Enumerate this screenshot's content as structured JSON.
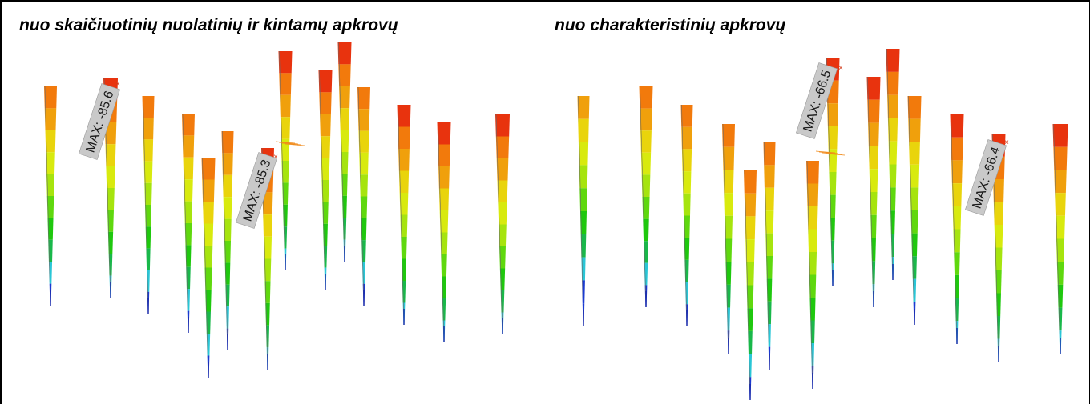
{
  "panels": [
    {
      "title": "nuo skaičiuotinių nuolatinių ir kintamų apkrovų",
      "max_labels": [
        {
          "text": "MAX: -85.6"
        },
        {
          "text": "MAX: -85.3"
        }
      ]
    },
    {
      "title": "nuo charakteristinių apkrovų",
      "max_labels": [
        {
          "text": "MAX: -66.5"
        },
        {
          "text": "MAX: -66.4"
        }
      ]
    }
  ],
  "colors": {
    "scale": [
      "#e8330e",
      "#f27a0c",
      "#f0a00c",
      "#e9d40c",
      "#d8ea0e",
      "#a6e40e",
      "#5fd80e",
      "#1fc80e",
      "#19b84a",
      "#29c6d6",
      "#1a3ad0"
    ],
    "label_bg": "#c9c9c9",
    "marker": "#d23a1a"
  }
}
